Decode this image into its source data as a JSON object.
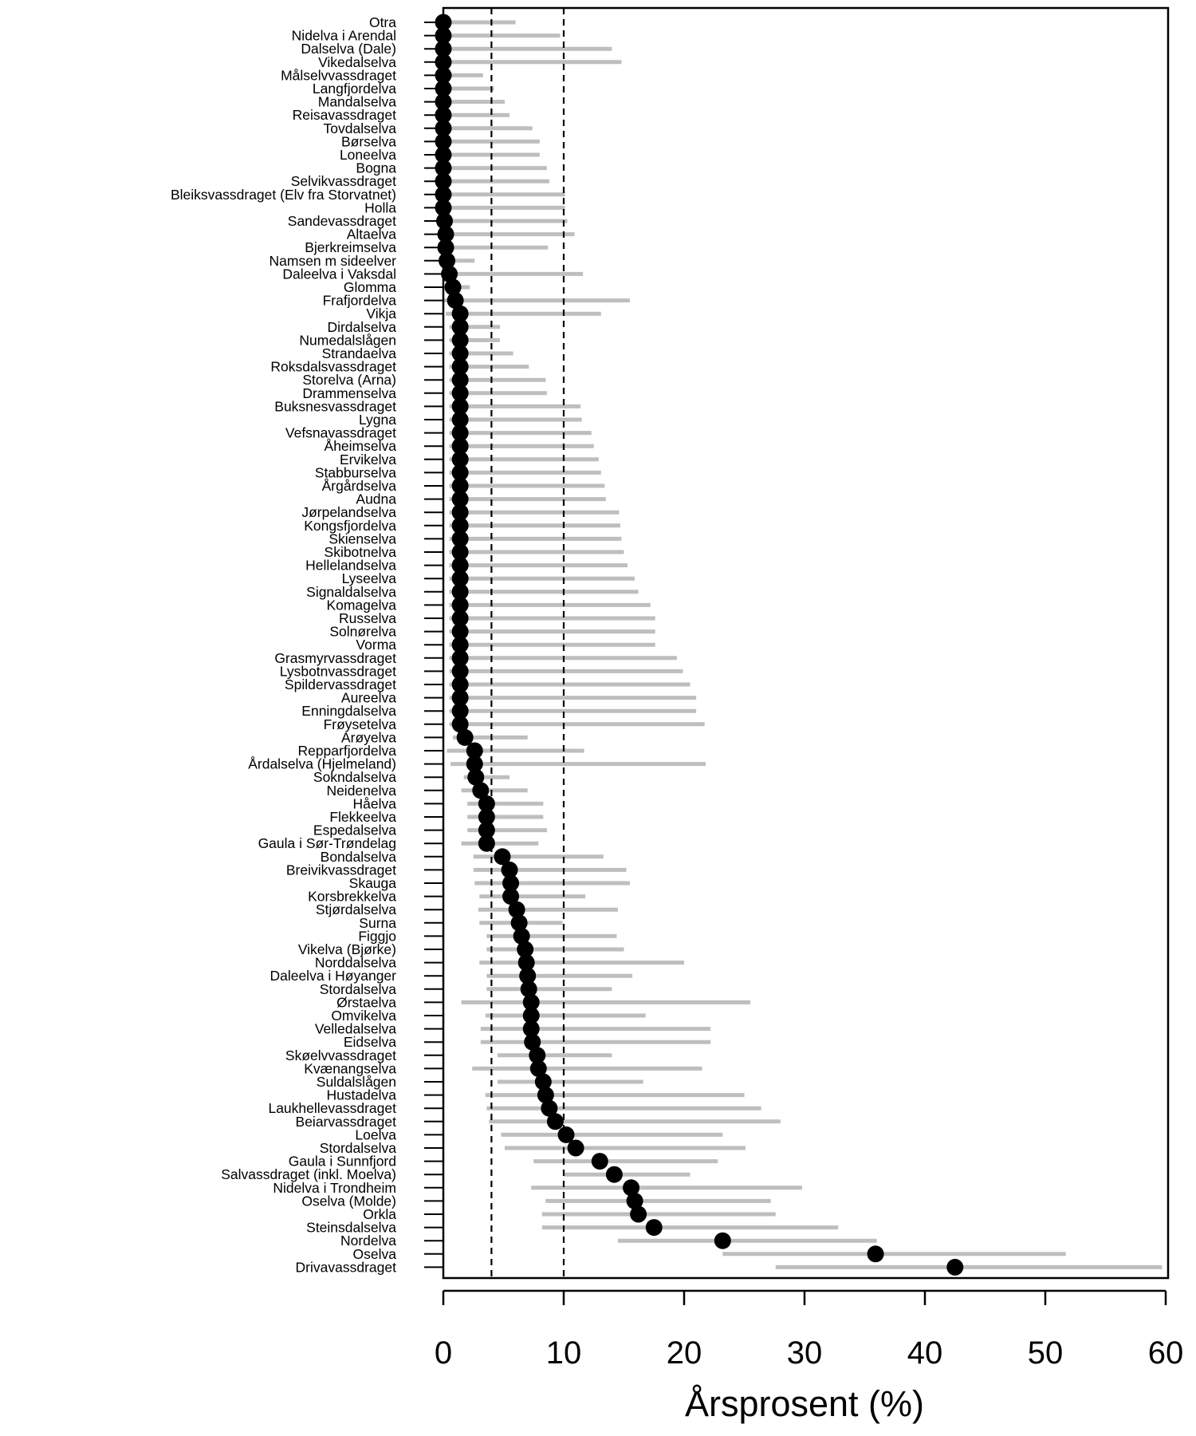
{
  "chart_data": {
    "type": "scatter",
    "orientation": "horizontal",
    "title": "",
    "xlabel": "Årsprosent (%)",
    "ylabel": "",
    "xlim": [
      0,
      60
    ],
    "x_ticks": [
      0,
      10,
      20,
      30,
      40,
      50,
      60
    ],
    "reference_lines_x": [
      4,
      10
    ],
    "grid": false,
    "legend": "none",
    "colors": {
      "point": "#000000",
      "interval": "#bebebe",
      "reference_line": "#000000"
    },
    "categories": [
      "Otra",
      "Nidelva i Arendal",
      "Dalselva (Dale)",
      "Vikedalselva",
      "Målselvvassdraget",
      "Langfjordelva",
      "Mandalselva",
      "Reisavassdraget",
      "Tovdalselva",
      "Børselva",
      "Loneelva",
      "Bogna",
      "Selvikvassdraget",
      "Bleiksvassdraget (Elv fra Storvatnet)",
      "Holla",
      "Sandevassdraget",
      "Altaelva",
      "Bjerkreimselva",
      "Namsen m sideelver",
      "Daleelva i Vaksdal",
      "Glomma",
      "Frafjordelva",
      "Vikja",
      "Dirdalselva",
      "Numedalslågen",
      "Strandaelva",
      "Roksdalsvassdraget",
      "Storelva (Arna)",
      "Drammenselva",
      "Buksnesvassdraget",
      "Lygna",
      "Vefsnavassdraget",
      "Åheimselva",
      "Ervikelva",
      "Stabburselva",
      "Årgårdselva",
      "Audna",
      "Jørpelandselva",
      "Kongsfjordelva",
      "Skienselva",
      "Skibotnelva",
      "Hellelandselva",
      "Lyseelva",
      "Signaldalselva",
      "Komagelva",
      "Russelva",
      "Solnørelva",
      "Vorma",
      "Grasmyrvassdraget",
      "Lysbotnvassdraget",
      "Spildervassdraget",
      "Aureelva",
      "Enningdalselva",
      "Frøysetelva",
      "Arøyelva",
      "Repparfjordelva",
      "Årdalselva (Hjelmeland)",
      "Sokndalselva",
      "Neidenelva",
      "Håelva",
      "Flekkeelva",
      "Espedalselva",
      "Gaula i Sør-Trøndelag",
      "Bondalselva",
      "Breivikvassdraget",
      "Skauga",
      "Korsbrekkelva",
      "Stjørdalselva",
      "Surna",
      "Figgjo",
      "Vikelva (Bjørke)",
      "Norddalselva",
      "Daleelva i Høyanger",
      "Stordalselva",
      "Ørstaelva",
      "Omvikelva",
      "Velledalselva",
      "Eidselva",
      "Skøelvvassdraget",
      "Kvænangselva",
      "Suldalslågen",
      "Hustadelva",
      "Laukhellevassdraget",
      "Beiarvassdraget",
      "Loelva",
      "Stordalselva",
      "Gaula i Sunnfjord",
      "Salvassdraget (inkl. Moelva)",
      "Nidelva i Trondheim",
      "Oselva (Molde)",
      "Orkla",
      "Steinsdalselva",
      "Nordelva",
      "Oselva",
      "Drivavassdraget"
    ],
    "series": [
      {
        "values": [
          0,
          0,
          0,
          0,
          0,
          0,
          0,
          0,
          0,
          0,
          0,
          0,
          0,
          0,
          0,
          0.1,
          0.2,
          0.2,
          0.3,
          0.5,
          0.8,
          1.0,
          1.4,
          1.4,
          1.4,
          1.4,
          1.4,
          1.4,
          1.4,
          1.4,
          1.4,
          1.4,
          1.4,
          1.4,
          1.4,
          1.4,
          1.4,
          1.4,
          1.4,
          1.4,
          1.4,
          1.4,
          1.4,
          1.4,
          1.4,
          1.4,
          1.4,
          1.4,
          1.4,
          1.4,
          1.4,
          1.4,
          1.4,
          1.4,
          1.8,
          2.6,
          2.6,
          2.7,
          3.1,
          3.6,
          3.6,
          3.6,
          3.6,
          4.9,
          5.5,
          5.6,
          5.6,
          6.1,
          6.3,
          6.5,
          6.8,
          6.9,
          7.0,
          7.1,
          7.3,
          7.3,
          7.3,
          7.4,
          7.8,
          7.9,
          8.3,
          8.5,
          8.8,
          9.3,
          10.2,
          11.0,
          13.0,
          14.2,
          15.6,
          15.9,
          16.2,
          17.5,
          23.2,
          35.9,
          42.5
        ],
        "lower": [
          0,
          0,
          0,
          0,
          0,
          0,
          0,
          0,
          0,
          0,
          0,
          0,
          0,
          0,
          0,
          0,
          0,
          0,
          0,
          0,
          0,
          0,
          0.2,
          0.5,
          0.5,
          0.5,
          0.5,
          0.5,
          0.5,
          0.5,
          0.5,
          0.5,
          0.5,
          0.5,
          0.5,
          0.5,
          0.5,
          0.5,
          0.5,
          0.5,
          0.5,
          0.5,
          0.5,
          0.5,
          0.5,
          0.5,
          0.5,
          0.5,
          0.5,
          0.5,
          0.5,
          0.5,
          0.5,
          0.5,
          0.8,
          0.3,
          0.6,
          1.7,
          1.5,
          2.0,
          2.0,
          2.0,
          1.5,
          2.5,
          2.5,
          2.6,
          3.0,
          2.9,
          3.0,
          3.6,
          3.6,
          3.0,
          3.6,
          3.6,
          1.5,
          3.5,
          3.1,
          3.1,
          4.5,
          2.4,
          4.5,
          3.5,
          3.6,
          3.8,
          4.8,
          5.1,
          7.5,
          10.0,
          7.3,
          8.5,
          8.2,
          8.2,
          14.5,
          23.2,
          27.6
        ],
        "upper": [
          6.0,
          9.7,
          14.0,
          14.8,
          3.3,
          4.2,
          5.1,
          5.5,
          7.4,
          8.0,
          8.0,
          8.6,
          8.8,
          10.1,
          10.1,
          10.3,
          10.9,
          8.7,
          2.6,
          11.6,
          2.2,
          15.5,
          13.1,
          4.7,
          4.7,
          5.8,
          7.1,
          8.5,
          8.6,
          11.4,
          11.5,
          12.3,
          12.5,
          12.9,
          13.1,
          13.4,
          13.5,
          14.6,
          14.7,
          14.8,
          15.0,
          15.3,
          15.9,
          16.2,
          17.2,
          17.6,
          17.6,
          17.6,
          19.4,
          19.9,
          20.5,
          21.0,
          21.0,
          21.7,
          7.0,
          11.7,
          21.8,
          5.5,
          7.0,
          8.3,
          8.3,
          8.6,
          7.9,
          13.3,
          15.2,
          15.5,
          11.8,
          14.5,
          9.9,
          14.4,
          15.0,
          20.0,
          15.7,
          14.0,
          25.5,
          16.8,
          22.2,
          22.2,
          14.0,
          21.5,
          16.6,
          25.0,
          26.4,
          28.0,
          23.2,
          25.1,
          22.8,
          20.5,
          29.8,
          27.2,
          27.6,
          32.8,
          36.0,
          51.7,
          59.7
        ]
      }
    ]
  }
}
